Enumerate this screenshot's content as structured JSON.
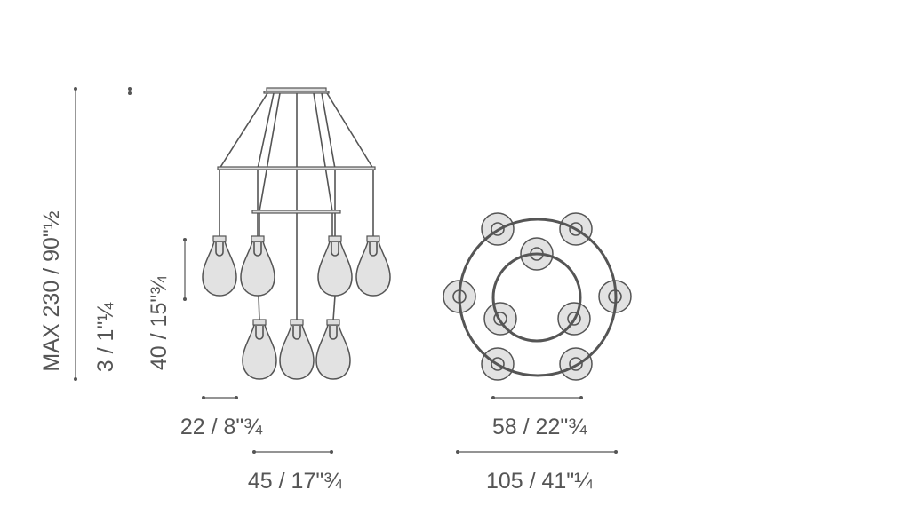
{
  "dimensions": {
    "max_height": "MAX 230 / 90\"½",
    "canopy_height": "3 / 1\"¼",
    "pendant_height": "40 / 15\"¾",
    "pendant_width": "22 / 8\"¾",
    "inner_width": "45 / 17\"¾",
    "inner_ring_diameter": "58 / 22\"¾",
    "outer_ring_diameter": "105 / 41\"¼"
  },
  "colors": {
    "line": "#555555",
    "glass": "#e2e2e2"
  }
}
